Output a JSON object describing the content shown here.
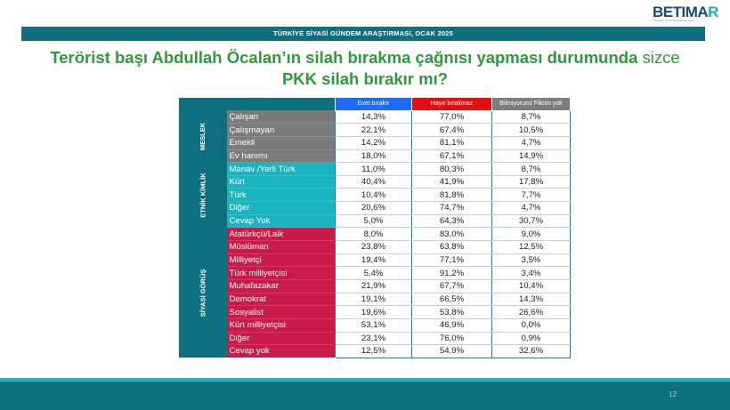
{
  "logo": {
    "text_main": "BETIMA",
    "text_accent": "R",
    "subtitle": "Yönetişim ve Uzlaşma Araştırmaları"
  },
  "header_bar": "TÜRKİYE SİYASİ GÜNDEM ARAŞTIRMASI, OCAK 2025",
  "title": {
    "line1_bold": "Terörist başı Abdullah Öcalan’ın silah bırakma çağnısı yapması durumunda",
    "line1_plain": " sizce",
    "line2": "PKK silah bırakır mı?"
  },
  "columns": [
    "Evet bırakır",
    "Hayır bırakmaz",
    "Bilmiyorum/ Fikrim yok"
  ],
  "groups": [
    {
      "name": "MESLEK",
      "color": "#7b7b7b",
      "rows": [
        {
          "label": "Çalışan",
          "values": [
            "14,3%",
            "77,0%",
            "8,7%"
          ]
        },
        {
          "label": "Çalışmayan",
          "values": [
            "22,1%",
            "67,4%",
            "10,5%"
          ]
        },
        {
          "label": "Emekli",
          "values": [
            "14,2%",
            "81,1%",
            "4,7%"
          ]
        },
        {
          "label": "Ev hanımı",
          "values": [
            "18,0%",
            "67,1%",
            "14,9%"
          ]
        }
      ]
    },
    {
      "name": "ETNİK KİMLİK",
      "color": "#1ab3c0",
      "rows": [
        {
          "label": "Manav /Yerli Türk",
          "values": [
            "11,0%",
            "80,3%",
            "8,7%"
          ]
        },
        {
          "label": "Kürt",
          "values": [
            "40,4%",
            "41,9%",
            "17,8%"
          ]
        },
        {
          "label": "Türk",
          "values": [
            "10,4%",
            "81,8%",
            "7,7%"
          ]
        },
        {
          "label": "Diğer",
          "values": [
            "20,6%",
            "74,7%",
            "4,7%"
          ]
        },
        {
          "label": "Cevap Yok",
          "values": [
            "5,0%",
            "64,3%",
            "30,7%"
          ]
        }
      ]
    },
    {
      "name": "SİYASİ GÖRÜŞ",
      "color": "#c91a48",
      "rows": [
        {
          "label": "Atatürkçü/Laik",
          "values": [
            "8,0%",
            "83,0%",
            "9,0%"
          ]
        },
        {
          "label": "Müslüman",
          "values": [
            "23,8%",
            "63,8%",
            "12,5%"
          ]
        },
        {
          "label": "Milliyetçi",
          "values": [
            "19,4%",
            "77,1%",
            "3,5%"
          ]
        },
        {
          "label": "Türk milliyetçisi",
          "values": [
            "5,4%",
            "91,2%",
            "3,4%"
          ]
        },
        {
          "label": "Muhafazakar",
          "values": [
            "21,9%",
            "67,7%",
            "10,4%"
          ]
        },
        {
          "label": "Demokrat",
          "values": [
            "19,1%",
            "66,5%",
            "14,3%"
          ]
        },
        {
          "label": "Sosyalist",
          "values": [
            "19,6%",
            "53,8%",
            "26,6%"
          ]
        },
        {
          "label": "Kürt milliyetçisi",
          "values": [
            "53,1%",
            "46,9%",
            "0,0%"
          ]
        },
        {
          "label": "Diğer",
          "values": [
            "23,1%",
            "76,0%",
            "0,9%"
          ]
        },
        {
          "label": "Cevap yok",
          "values": [
            "12,5%",
            "54,9%",
            "32,6%"
          ]
        }
      ]
    }
  ],
  "page_number": "12"
}
